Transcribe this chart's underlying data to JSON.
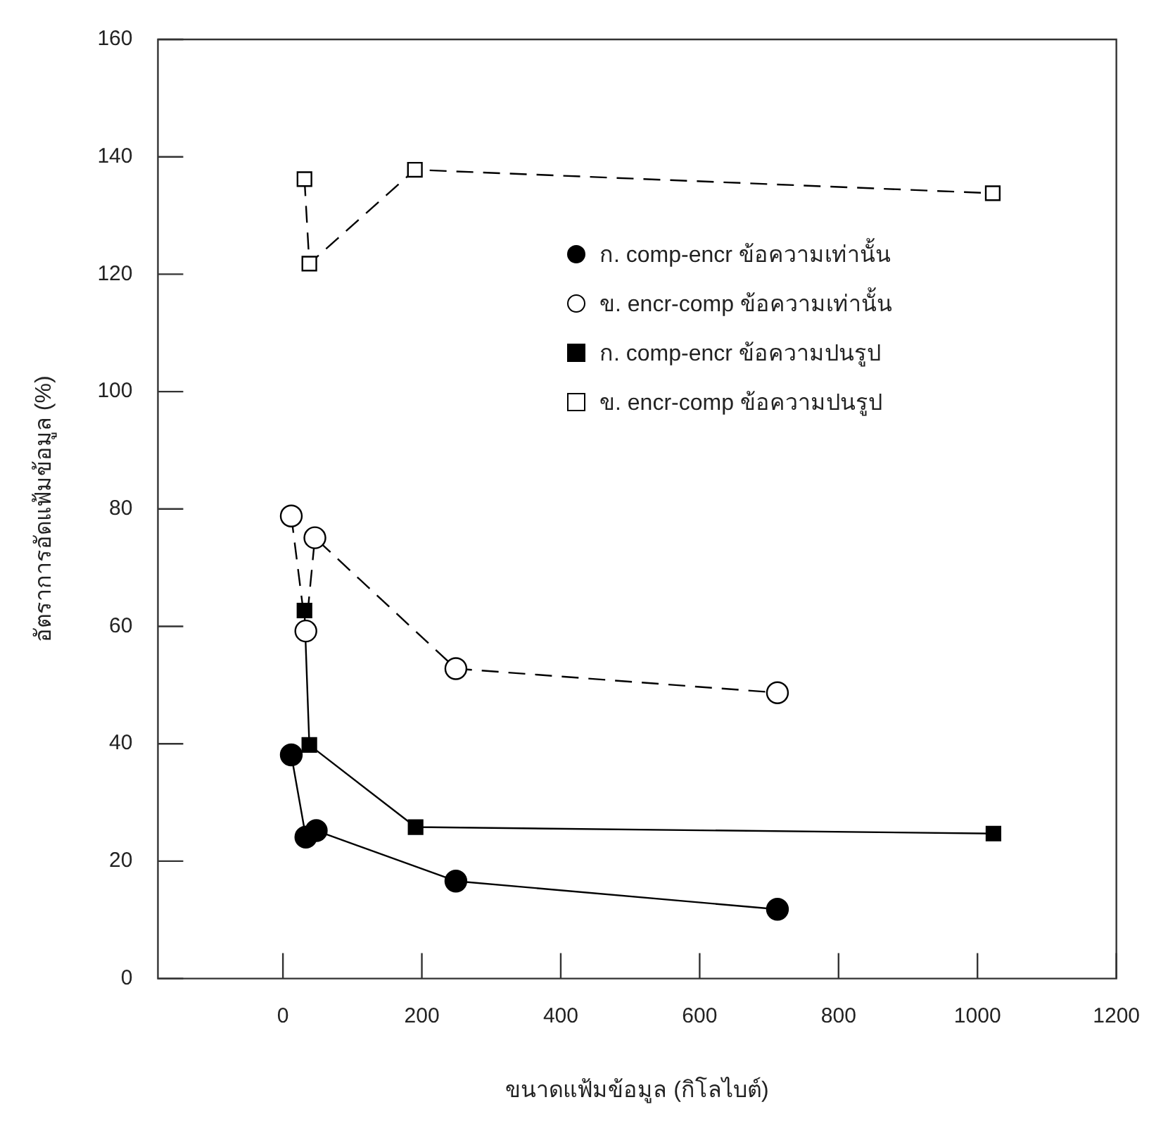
{
  "chart_data": {
    "type": "line",
    "xlabel": "ขนาดแฟ้มข้อมูล (กิโลไบต์)",
    "ylabel": "อัตราการอัดแฟ้มข้อมูล (%)",
    "xlim": [
      -180,
      1200
    ],
    "xticks": [
      0,
      200,
      400,
      600,
      800,
      1000,
      1200
    ],
    "ylim": [
      0,
      160
    ],
    "yticks": [
      0,
      20,
      40,
      60,
      80,
      100,
      120,
      140,
      160
    ],
    "grid": false,
    "legend": "right",
    "series": [
      {
        "name": "ก. comp-encr ข้อความเท่านั้น",
        "color": "#000000",
        "marker": "circle",
        "line_style": "solid",
        "x": [
          12,
          33,
          48,
          249,
          712
        ],
        "values": [
          38.1,
          24.1,
          25.2,
          16.6,
          11.8
        ]
      },
      {
        "name": "ข. encr-comp ข้อความเท่านั้น",
        "color": "#000000",
        "marker": "circle",
        "line_style": "dashed",
        "x": [
          12,
          33,
          46,
          249,
          712
        ],
        "values": [
          78.8,
          59.2,
          75.1,
          52.8,
          48.7
        ]
      },
      {
        "name": "ก. comp-encr ข้อความปนรูป",
        "color": "#000000",
        "marker": "square",
        "line_style": "solid",
        "x": [
          31,
          38,
          191,
          1023
        ],
        "values": [
          62.7,
          39.8,
          25.8,
          24.7
        ]
      },
      {
        "name": "ข. encr-comp ข้อความปนรูป",
        "color": "#000000",
        "marker": "square",
        "line_style": "dashed",
        "x": [
          31,
          38,
          190,
          1022
        ],
        "values": [
          136.2,
          121.8,
          137.8,
          133.8
        ]
      }
    ]
  }
}
